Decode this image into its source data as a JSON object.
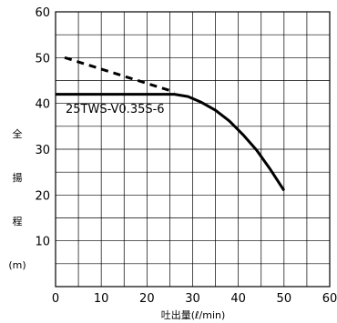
{
  "chart_data": {
    "type": "line",
    "xlabel": "吐出量(ℓ/min)",
    "ylabel_lines": [
      "全",
      "揚",
      "程",
      "(m)"
    ],
    "xlim": [
      0,
      60
    ],
    "ylim": [
      0,
      60
    ],
    "x_ticks": [
      0,
      10,
      20,
      30,
      40,
      50,
      60
    ],
    "y_ticks": [
      10,
      20,
      30,
      40,
      50,
      60
    ],
    "grid": true,
    "annotation": "25TWS-V0.35S-6",
    "series": [
      {
        "style": "solid",
        "x": [
          0,
          26,
          29,
          32,
          35,
          38,
          41,
          44,
          47,
          50
        ],
        "y": [
          42,
          42,
          41.5,
          40.2,
          38.5,
          36.2,
          33.2,
          29.8,
          25.6,
          21
        ]
      },
      {
        "style": "dashed",
        "x": [
          2,
          26
        ],
        "y": [
          50,
          42.5
        ]
      }
    ]
  }
}
